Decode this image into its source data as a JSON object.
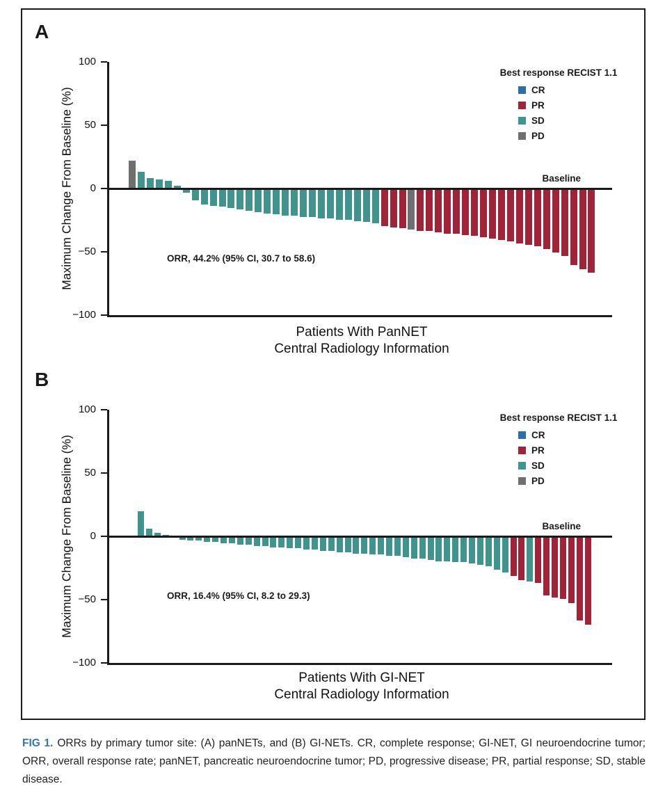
{
  "figure": {
    "panels": [
      {
        "label": "A",
        "ylabel": "Maximum Change From Baseline (%)",
        "xlabel_line1": "Patients With PanNET",
        "xlabel_line2": "Central Radiology Information",
        "annotation": "ORR, 44.2% (95% CI, 30.7 to 58.6)",
        "baseline_label": "Baseline",
        "legend_title": "Best response RECIST 1.1"
      },
      {
        "label": "B",
        "ylabel": "Maximum Change From Baseline (%)",
        "xlabel_line1": "Patients With GI-NET",
        "xlabel_line2": "Central Radiology Information",
        "annotation": "ORR, 16.4% (95% CI, 8.2 to 29.3)",
        "baseline_label": "Baseline",
        "legend_title": "Best response RECIST 1.1"
      }
    ],
    "legend_items": [
      {
        "label": "CR",
        "color": "#2E6DA8"
      },
      {
        "label": "PR",
        "color": "#A12337"
      },
      {
        "label": "SD",
        "color": "#3F948E"
      },
      {
        "label": "PD",
        "color": "#6F6F6F"
      }
    ],
    "axis_color": "#1a1a1a"
  },
  "caption": {
    "tag": "FIG 1.",
    "tag_color": "#3278B5",
    "text": "ORRs by primary tumor site: (A) panNETs, and (B) GI-NETs. CR, complete response; GI-NET, GI neuroendocrine tumor; ORR, overall response rate; panNET, pancreatic neuroendocrine tumor; PD, progressive disease; PR, partial response; SD, stable disease."
  },
  "chart_data": [
    {
      "type": "bar",
      "subtype": "waterfall",
      "title": "Patients With PanNET",
      "subtitle": "Central Radiology Information",
      "ylabel": "Maximum Change From Baseline (%)",
      "ylim": [
        -100,
        100
      ],
      "yticks": [
        100,
        50,
        0,
        -50,
        -100
      ],
      "grid": false,
      "legend_position": "top-right",
      "legend_title": "Best response RECIST 1.1",
      "legend_entries": [
        "CR",
        "PR",
        "SD",
        "PD"
      ],
      "annotation": "ORR, 44.2% (95% CI, 30.7 to 58.6)",
      "baseline_annotation": "Baseline",
      "series": [
        {
          "name": "Maximum change from baseline (%)",
          "values": [
            22,
            13,
            8,
            7,
            6,
            2,
            -3,
            -9,
            -12,
            -13,
            -14,
            -15,
            -16,
            -17,
            -18,
            -19,
            -20,
            -21,
            -21,
            -22,
            -22,
            -23,
            -23,
            -24,
            -24,
            -25,
            -26,
            -27,
            -29,
            -30,
            -31,
            -32,
            -33,
            -33,
            -34,
            -35,
            -35,
            -36,
            -37,
            -38,
            -39,
            -40,
            -41,
            -43,
            -44,
            -45,
            -47,
            -50,
            -53,
            -60,
            -63,
            -66
          ],
          "responses": [
            "PD",
            "SD",
            "SD",
            "SD",
            "SD",
            "SD",
            "SD",
            "SD",
            "SD",
            "SD",
            "SD",
            "SD",
            "SD",
            "SD",
            "SD",
            "SD",
            "SD",
            "SD",
            "SD",
            "SD",
            "SD",
            "SD",
            "SD",
            "SD",
            "SD",
            "SD",
            "SD",
            "SD",
            "PR",
            "PR",
            "PR",
            "PD",
            "PR",
            "PR",
            "PR",
            "PR",
            "PR",
            "PR",
            "PR",
            "PR",
            "PR",
            "PR",
            "PR",
            "PR",
            "PR",
            "PR",
            "PR",
            "PR",
            "PR",
            "PR",
            "PR",
            "PR"
          ]
        }
      ]
    },
    {
      "type": "bar",
      "subtype": "waterfall",
      "title": "Patients With GI-NET",
      "subtitle": "Central Radiology Information",
      "ylabel": "Maximum Change From Baseline (%)",
      "ylim": [
        -100,
        100
      ],
      "yticks": [
        100,
        50,
        0,
        -50,
        -100
      ],
      "grid": false,
      "legend_position": "top-right",
      "legend_title": "Best response RECIST 1.1",
      "legend_entries": [
        "CR",
        "PR",
        "SD",
        "PD"
      ],
      "annotation": "ORR, 16.4% (95% CI, 8.2 to 29.3)",
      "baseline_annotation": "Baseline",
      "series": [
        {
          "name": "Maximum change from baseline (%)",
          "values": [
            20,
            6,
            3,
            1,
            0,
            -2,
            -3,
            -3,
            -4,
            -4,
            -5,
            -5,
            -6,
            -6,
            -7,
            -7,
            -8,
            -8,
            -9,
            -9,
            -10,
            -10,
            -11,
            -11,
            -12,
            -12,
            -13,
            -13,
            -14,
            -14,
            -15,
            -15,
            -16,
            -17,
            -17,
            -18,
            -19,
            -19,
            -20,
            -20,
            -21,
            -22,
            -23,
            -26,
            -28,
            -31,
            -34,
            -35,
            -36,
            -46,
            -48,
            -49,
            -52,
            -66,
            -69
          ],
          "responses": [
            "SD",
            "SD",
            "SD",
            "SD",
            "SD",
            "SD",
            "SD",
            "SD",
            "SD",
            "SD",
            "SD",
            "SD",
            "SD",
            "SD",
            "SD",
            "SD",
            "SD",
            "SD",
            "SD",
            "SD",
            "SD",
            "SD",
            "SD",
            "SD",
            "SD",
            "SD",
            "SD",
            "SD",
            "SD",
            "SD",
            "SD",
            "SD",
            "SD",
            "SD",
            "SD",
            "SD",
            "SD",
            "SD",
            "SD",
            "SD",
            "SD",
            "SD",
            "SD",
            "SD",
            "SD",
            "PR",
            "PR",
            "SD",
            "PR",
            "PR",
            "PR",
            "PR",
            "PR",
            "PR",
            "PR"
          ]
        }
      ]
    }
  ]
}
